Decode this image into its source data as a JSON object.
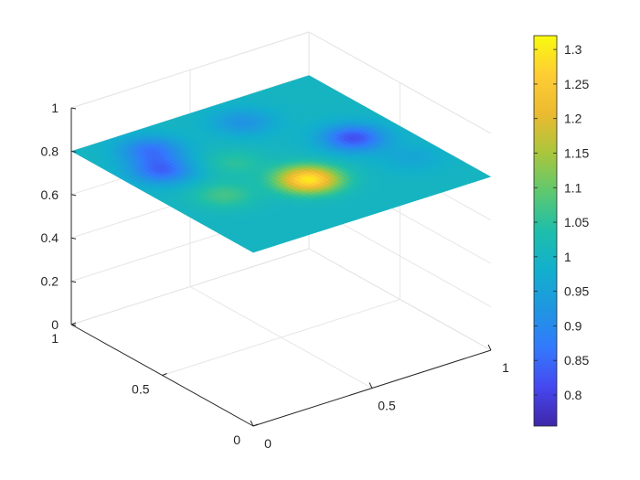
{
  "chart_data": {
    "type": "surface",
    "view": "3d-isometric",
    "surface_height": 0.8,
    "xlim": [
      0,
      1
    ],
    "ylim": [
      0,
      1
    ],
    "zlim": [
      0,
      1
    ],
    "x_ticks": [
      "0",
      "0.5",
      "1"
    ],
    "y_ticks": [
      "0",
      "0.5",
      "1"
    ],
    "z_ticks": [
      "0",
      "0.2",
      "0.4",
      "0.6",
      "0.8",
      "1"
    ],
    "grid": true,
    "colormap": "parula",
    "clim": [
      0.755,
      1.32
    ],
    "colorbar_ticks": [
      "0.8",
      "0.85",
      "0.9",
      "0.95",
      "1",
      "1.05",
      "1.1",
      "1.15",
      "1.2",
      "1.25",
      "1.3"
    ],
    "colorbar_tick_values": [
      0.8,
      0.85,
      0.9,
      0.95,
      1.0,
      1.05,
      1.1,
      1.15,
      1.2,
      1.25,
      1.3
    ],
    "base_value": 1.0,
    "features": [
      {
        "u": 0.5,
        "v": 0.35,
        "value": 1.3
      },
      {
        "u": 0.2,
        "v": 0.42,
        "value": 1.07
      },
      {
        "u": 0.38,
        "v": 0.6,
        "value": 1.05
      },
      {
        "u": 0.15,
        "v": 0.7,
        "value": 0.85
      },
      {
        "u": 0.22,
        "v": 0.85,
        "value": 0.87
      },
      {
        "u": 0.82,
        "v": 0.52,
        "value": 0.82
      },
      {
        "u": 0.6,
        "v": 0.84,
        "value": 0.92
      },
      {
        "u": 0.88,
        "v": 0.28,
        "value": 0.96
      }
    ]
  }
}
